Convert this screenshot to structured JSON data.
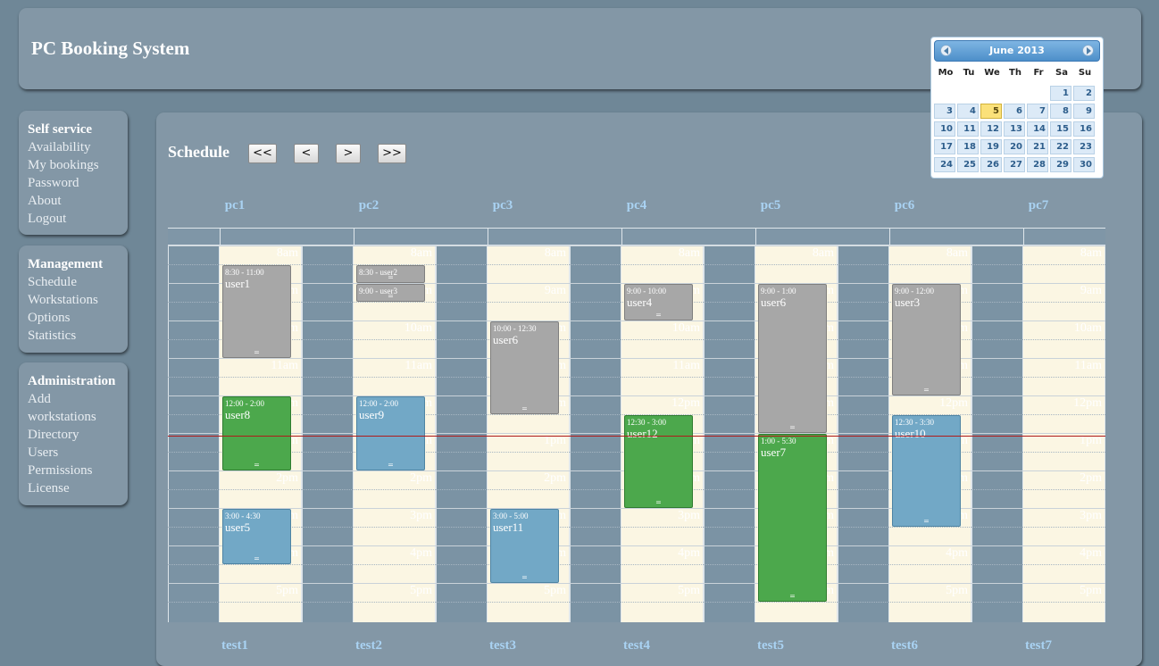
{
  "app_title": "PC Booking System",
  "menus": [
    {
      "title": "Self service",
      "items": [
        "Availability",
        "My bookings",
        "Password",
        "About",
        "Logout"
      ]
    },
    {
      "title": "Management",
      "items": [
        "Schedule",
        "Workstations",
        "Options",
        "Statistics"
      ]
    },
    {
      "title": "Administration",
      "items": [
        "Add",
        "workstations",
        "Directory",
        "Users",
        "Permissions",
        "License"
      ]
    }
  ],
  "schedule": {
    "title": "Schedule",
    "nav": [
      "<<",
      "<",
      ">",
      ">>"
    ],
    "hours": [
      "8am",
      "9am",
      "10am",
      "11am",
      "12pm",
      "1pm",
      "2pm",
      "3pm",
      "4pm",
      "5pm"
    ],
    "columns": [
      {
        "name": "pc1",
        "footer": "test1",
        "bookings": [
          {
            "time": "8:30 - 11:00",
            "user": "user1",
            "start": 8.5,
            "end": 11.0,
            "color": "grey"
          },
          {
            "time": "12:00 - 2:00",
            "user": "user8",
            "start": 12.0,
            "end": 14.0,
            "color": "green"
          },
          {
            "time": "3:00 - 4:30",
            "user": "user5",
            "start": 15.0,
            "end": 16.5,
            "color": "blue"
          }
        ]
      },
      {
        "name": "pc2",
        "footer": "test2",
        "bookings": [
          {
            "time": "8:30 - user2",
            "user": "",
            "start": 8.5,
            "end": 9.0,
            "color": "grey"
          },
          {
            "time": "9:00 - user3",
            "user": "",
            "start": 9.0,
            "end": 9.5,
            "color": "grey"
          },
          {
            "time": "12:00 - 2:00",
            "user": "user9",
            "start": 12.0,
            "end": 14.0,
            "color": "blue"
          }
        ]
      },
      {
        "name": "pc3",
        "footer": "test3",
        "bookings": [
          {
            "time": "10:00 - 12:30",
            "user": "user6",
            "start": 10.0,
            "end": 12.5,
            "color": "grey"
          },
          {
            "time": "3:00 - 5:00",
            "user": "user11",
            "start": 15.0,
            "end": 17.0,
            "color": "blue"
          }
        ]
      },
      {
        "name": "pc4",
        "footer": "test4",
        "bookings": [
          {
            "time": "9:00 - 10:00",
            "user": "user4",
            "start": 9.0,
            "end": 10.0,
            "color": "grey"
          },
          {
            "time": "12:30 - 3:00",
            "user": "user12",
            "start": 12.5,
            "end": 15.0,
            "color": "green"
          }
        ]
      },
      {
        "name": "pc5",
        "footer": "test5",
        "bookings": [
          {
            "time": "9:00 - 1:00",
            "user": "user6",
            "start": 9.0,
            "end": 13.0,
            "color": "grey"
          },
          {
            "time": "1:00 - 5:30",
            "user": "user7",
            "start": 13.0,
            "end": 17.5,
            "color": "green"
          }
        ]
      },
      {
        "name": "pc6",
        "footer": "test6",
        "bookings": [
          {
            "time": "9:00 - 12:00",
            "user": "user3",
            "start": 9.0,
            "end": 12.0,
            "color": "grey"
          },
          {
            "time": "12:30 - 3:30",
            "user": "user10",
            "start": 12.5,
            "end": 15.5,
            "color": "blue"
          }
        ]
      },
      {
        "name": "pc7",
        "footer": "test7",
        "bookings": []
      }
    ]
  },
  "calendar": {
    "title": "June 2013",
    "weekdays": [
      "Mo",
      "Tu",
      "We",
      "Th",
      "Fr",
      "Sa",
      "Su"
    ],
    "first_weekday_index": 5,
    "days_in_month": 30,
    "selected_day": 5
  },
  "colors": {
    "grey": "#a7a7a7",
    "green": "#4ca84c",
    "blue": "#72a8c6",
    "now_line": "#b01a1a"
  }
}
